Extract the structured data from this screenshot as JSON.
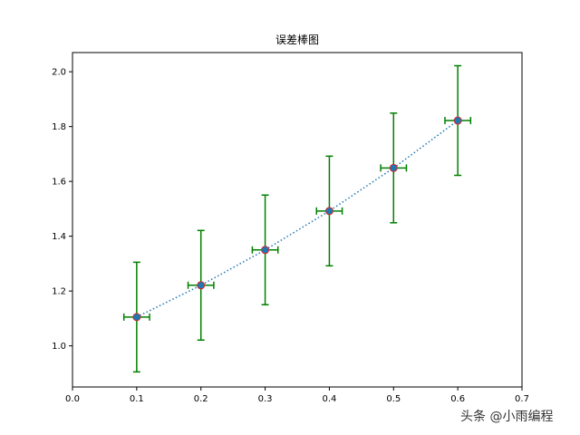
{
  "chart_data": {
    "type": "scatter",
    "title": "误差棒图",
    "xlabel": "",
    "ylabel": "",
    "xlim": [
      0.0,
      0.7
    ],
    "ylim": [
      0.85,
      2.07
    ],
    "xticks": [
      "0.0",
      "0.1",
      "0.2",
      "0.3",
      "0.4",
      "0.5",
      "0.6",
      "0.7"
    ],
    "yticks": [
      "1.0",
      "1.2",
      "1.4",
      "1.6",
      "1.8",
      "2.0"
    ],
    "grid": false,
    "series": [
      {
        "x": [
          0.1,
          0.2,
          0.3,
          0.4,
          0.5,
          0.6
        ],
        "y": [
          1.105,
          1.221,
          1.35,
          1.492,
          1.649,
          1.822
        ],
        "xerr": 0.02,
        "yerr": 0.2,
        "line_style": "dotted",
        "line_color": "#1f77b4",
        "marker_face": "#1f77b4",
        "marker_edge": "#d62728",
        "errorbar_color": "#008000"
      }
    ]
  },
  "watermark": "头条 @小雨编程"
}
